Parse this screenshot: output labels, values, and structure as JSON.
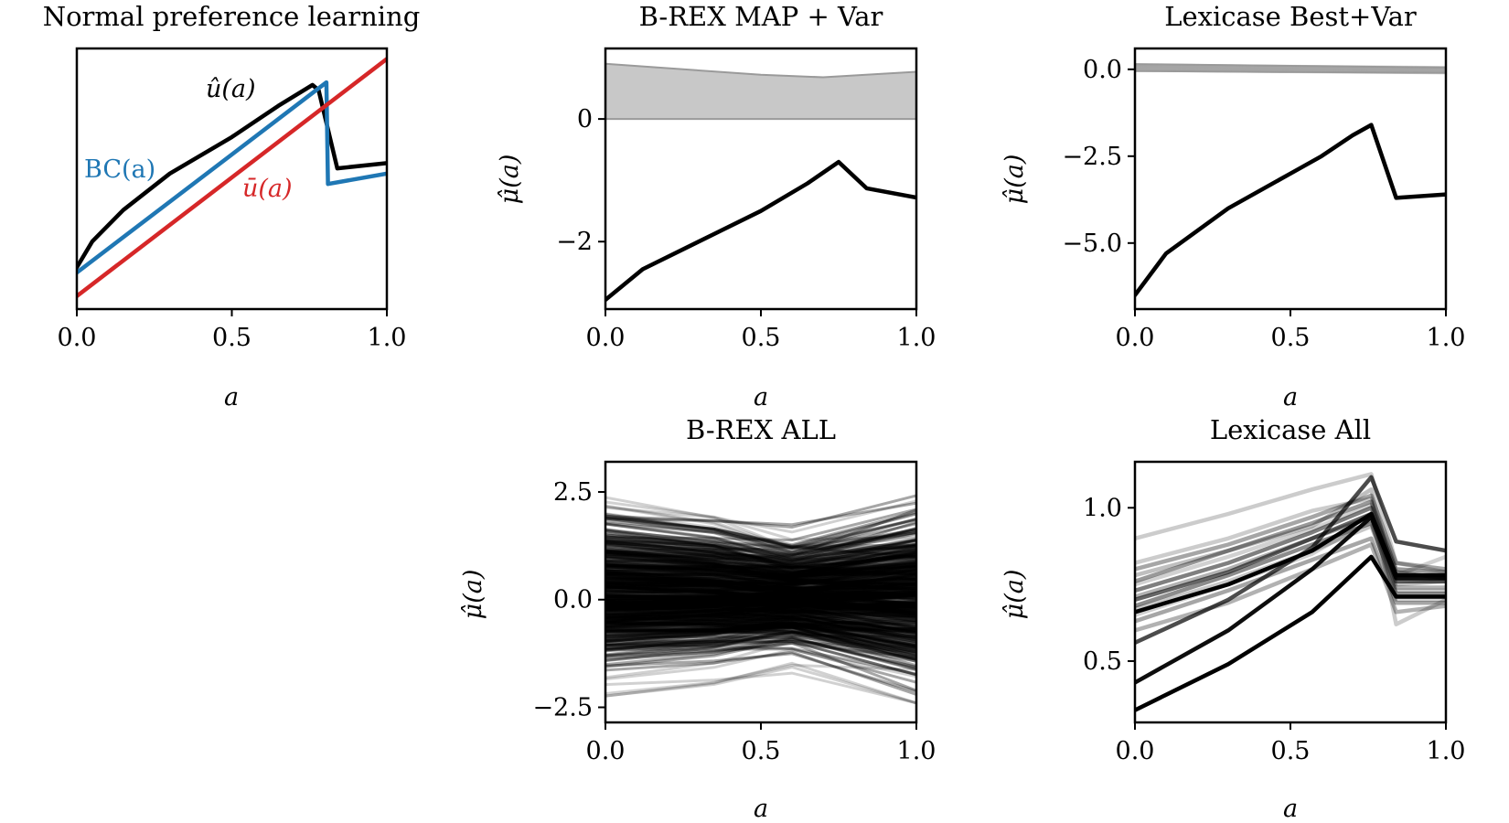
{
  "chart_data": [
    {
      "id": "p1",
      "type": "line",
      "title": "Normal preference learning",
      "xlabel": "a",
      "ylabel": "",
      "xlim": [
        0,
        1
      ],
      "ylim": [
        0,
        1
      ],
      "xticks": [
        "0.0",
        "0.5",
        "1.0"
      ],
      "yticks": [],
      "series": [
        {
          "name": "û(a)",
          "color": "#000000",
          "x": [
            0,
            0.05,
            0.15,
            0.3,
            0.5,
            0.65,
            0.76,
            0.78,
            0.84,
            1.0
          ],
          "y": [
            0.16,
            0.26,
            0.38,
            0.52,
            0.66,
            0.78,
            0.86,
            0.84,
            0.54,
            0.56
          ]
        },
        {
          "name": "BC(a)",
          "color": "#1f77b4",
          "x": [
            0,
            0.805,
            0.81,
            1.0
          ],
          "y": [
            0.14,
            0.87,
            0.48,
            0.52
          ]
        },
        {
          "name": "ū(a)",
          "color": "#d62728",
          "x": [
            0,
            1.0
          ],
          "y": [
            0.05,
            0.96
          ]
        }
      ]
    },
    {
      "id": "p2",
      "type": "line",
      "title": "B-REX MAP + Var",
      "xlabel": "a",
      "ylabel": "μ̂(a)",
      "xlim": [
        0,
        1
      ],
      "ylim": [
        -3.1,
        1.15
      ],
      "xticks": [
        "0.0",
        "0.5",
        "1.0"
      ],
      "yticks": [
        "−2",
        "0"
      ],
      "band": {
        "color": "#c8c8c8",
        "x": [
          0,
          0.5,
          0.7,
          1.0
        ],
        "upper": [
          0.9,
          0.72,
          0.68,
          0.77
        ],
        "lower": [
          0,
          0,
          0,
          0
        ]
      },
      "series": [
        {
          "color": "#000000",
          "x": [
            0,
            0.12,
            0.3,
            0.5,
            0.65,
            0.75,
            0.84,
            1.0
          ],
          "y": [
            -2.95,
            -2.45,
            -2.0,
            -1.5,
            -1.05,
            -0.7,
            -1.13,
            -1.28
          ]
        }
      ]
    },
    {
      "id": "p3",
      "type": "line",
      "title": "Lexicase Best+Var",
      "xlabel": "a",
      "ylabel": "μ̂(a)",
      "xlim": [
        0,
        1
      ],
      "ylim": [
        -6.9,
        0.6
      ],
      "xticks": [
        "0.0",
        "0.5",
        "1.0"
      ],
      "yticks": [
        "−5.0",
        "−2.5",
        "0.0"
      ],
      "band": {
        "color": "#b0b0b0",
        "x": [
          0,
          0.5,
          1.0
        ],
        "upper": [
          0.15,
          0.1,
          0.05
        ],
        "lower": [
          -0.05,
          -0.08,
          -0.1
        ]
      },
      "series": [
        {
          "color": "#000000",
          "x": [
            0,
            0.1,
            0.3,
            0.5,
            0.6,
            0.7,
            0.76,
            0.84,
            1.0
          ],
          "y": [
            -6.5,
            -5.3,
            -4.0,
            -3.0,
            -2.5,
            -1.9,
            -1.6,
            -3.7,
            -3.6
          ]
        }
      ]
    },
    {
      "id": "p4",
      "type": "line",
      "title": "B-REX ALL",
      "xlabel": "a",
      "ylabel": "μ̂(a)",
      "xlim": [
        0,
        1
      ],
      "ylim": [
        -2.85,
        3.2
      ],
      "xticks": [
        "0.0",
        "0.5",
        "1.0"
      ],
      "yticks": [
        "−2.5",
        "0.0",
        "2.5"
      ],
      "ensemble": {
        "count": 400,
        "start_range": [
          -2.6,
          2.8
        ],
        "end_range": [
          -2.4,
          2.5
        ]
      }
    },
    {
      "id": "p5",
      "type": "line",
      "title": "Lexicase All",
      "xlabel": "a",
      "ylabel": "μ̂(a)",
      "xlim": [
        0,
        1
      ],
      "ylim": [
        0.3,
        1.15
      ],
      "xticks": [
        "0.0",
        "0.5",
        "1.0"
      ],
      "yticks": [
        "0.5",
        "1.0"
      ],
      "series": [
        {
          "color": "#000000",
          "opacity": 1.0,
          "x": [
            0,
            0.3,
            0.57,
            0.76,
            0.84,
            1.0
          ],
          "y": [
            0.34,
            0.49,
            0.66,
            0.84,
            0.71,
            0.71
          ]
        },
        {
          "color": "#000000",
          "opacity": 0.95,
          "x": [
            0,
            0.3,
            0.57,
            0.76,
            0.84,
            1.0
          ],
          "y": [
            0.43,
            0.6,
            0.8,
            0.97,
            0.77,
            0.77
          ]
        },
        {
          "color": "#000000",
          "opacity": 1.0,
          "x": [
            0,
            0.3,
            0.57,
            0.76,
            0.84,
            1.0
          ],
          "y": [
            0.66,
            0.75,
            0.86,
            0.98,
            0.78,
            0.78
          ]
        },
        {
          "color": "#000000",
          "opacity": 0.7,
          "x": [
            0,
            0.3,
            0.57,
            0.76,
            0.84,
            1.0
          ],
          "y": [
            0.56,
            0.7,
            0.87,
            1.1,
            0.89,
            0.86
          ]
        },
        {
          "color": "#000000",
          "opacity": 0.6,
          "x": [
            0,
            0.3,
            0.57,
            0.76,
            0.84,
            1.0
          ],
          "y": [
            0.7,
            0.79,
            0.9,
            0.98,
            0.76,
            0.76
          ]
        },
        {
          "color": "#000000",
          "opacity": 0.5,
          "x": [
            0,
            0.3,
            0.57,
            0.76,
            0.84,
            1.0
          ],
          "y": [
            0.73,
            0.82,
            0.92,
            1.0,
            0.79,
            0.77
          ]
        },
        {
          "color": "#000000",
          "opacity": 0.45,
          "x": [
            0,
            0.3,
            0.57,
            0.76,
            0.84,
            1.0
          ],
          "y": [
            0.68,
            0.78,
            0.88,
            0.95,
            0.72,
            0.72
          ]
        },
        {
          "color": "#000000",
          "opacity": 0.4,
          "x": [
            0,
            0.3,
            0.57,
            0.76,
            0.84,
            1.0
          ],
          "y": [
            0.76,
            0.86,
            0.95,
            1.02,
            0.8,
            0.79
          ]
        },
        {
          "color": "#000000",
          "opacity": 0.35,
          "x": [
            0,
            0.3,
            0.57,
            0.76,
            0.84,
            1.0
          ],
          "y": [
            0.63,
            0.73,
            0.83,
            0.9,
            0.69,
            0.69
          ]
        },
        {
          "color": "#000000",
          "opacity": 0.35,
          "x": [
            0,
            0.3,
            0.57,
            0.76,
            0.84,
            1.0
          ],
          "y": [
            0.8,
            0.88,
            0.97,
            1.04,
            0.82,
            0.8
          ]
        },
        {
          "color": "#000000",
          "opacity": 0.3,
          "x": [
            0,
            0.3,
            0.57,
            0.76,
            0.84,
            1.0
          ],
          "y": [
            0.71,
            0.8,
            0.9,
            0.97,
            0.74,
            0.74
          ]
        },
        {
          "color": "#000000",
          "opacity": 0.3,
          "x": [
            0,
            0.3,
            0.57,
            0.76,
            0.84,
            1.0
          ],
          "y": [
            0.6,
            0.69,
            0.8,
            0.88,
            0.66,
            0.68
          ]
        },
        {
          "color": "#000000",
          "opacity": 0.25,
          "x": [
            0,
            0.3,
            0.57,
            0.76,
            0.84,
            1.0
          ],
          "y": [
            0.78,
            0.86,
            0.94,
            1.06,
            0.75,
            0.76
          ]
        },
        {
          "color": "#000000",
          "opacity": 0.22,
          "x": [
            0,
            0.3,
            0.57,
            0.76,
            0.84,
            1.0
          ],
          "y": [
            0.67,
            0.76,
            0.86,
            0.94,
            0.73,
            0.73
          ]
        },
        {
          "color": "#000000",
          "opacity": 0.2,
          "x": [
            0,
            0.3,
            0.57,
            0.76,
            0.84,
            1.0
          ],
          "y": [
            0.9,
            0.98,
            1.06,
            1.11,
            0.82,
            0.79
          ]
        },
        {
          "color": "#000000",
          "opacity": 0.2,
          "x": [
            0,
            0.3,
            0.57,
            0.76,
            0.84,
            1.0
          ],
          "y": [
            0.82,
            0.9,
            0.99,
            1.03,
            0.62,
            0.7
          ]
        },
        {
          "color": "#000000",
          "opacity": 0.18,
          "x": [
            0,
            0.3,
            0.57,
            0.76,
            0.84,
            1.0
          ],
          "y": [
            0.75,
            0.84,
            0.93,
            1.01,
            0.78,
            0.84
          ]
        },
        {
          "color": "#000000",
          "opacity": 0.18,
          "x": [
            0,
            0.3,
            0.57,
            0.76,
            0.84,
            1.0
          ],
          "y": [
            0.65,
            0.75,
            0.85,
            0.96,
            0.7,
            0.7
          ]
        }
      ]
    }
  ],
  "annotations": {
    "u_hat": "û(a)",
    "bc": "BC(a)",
    "u_bar": "ū(a)"
  }
}
